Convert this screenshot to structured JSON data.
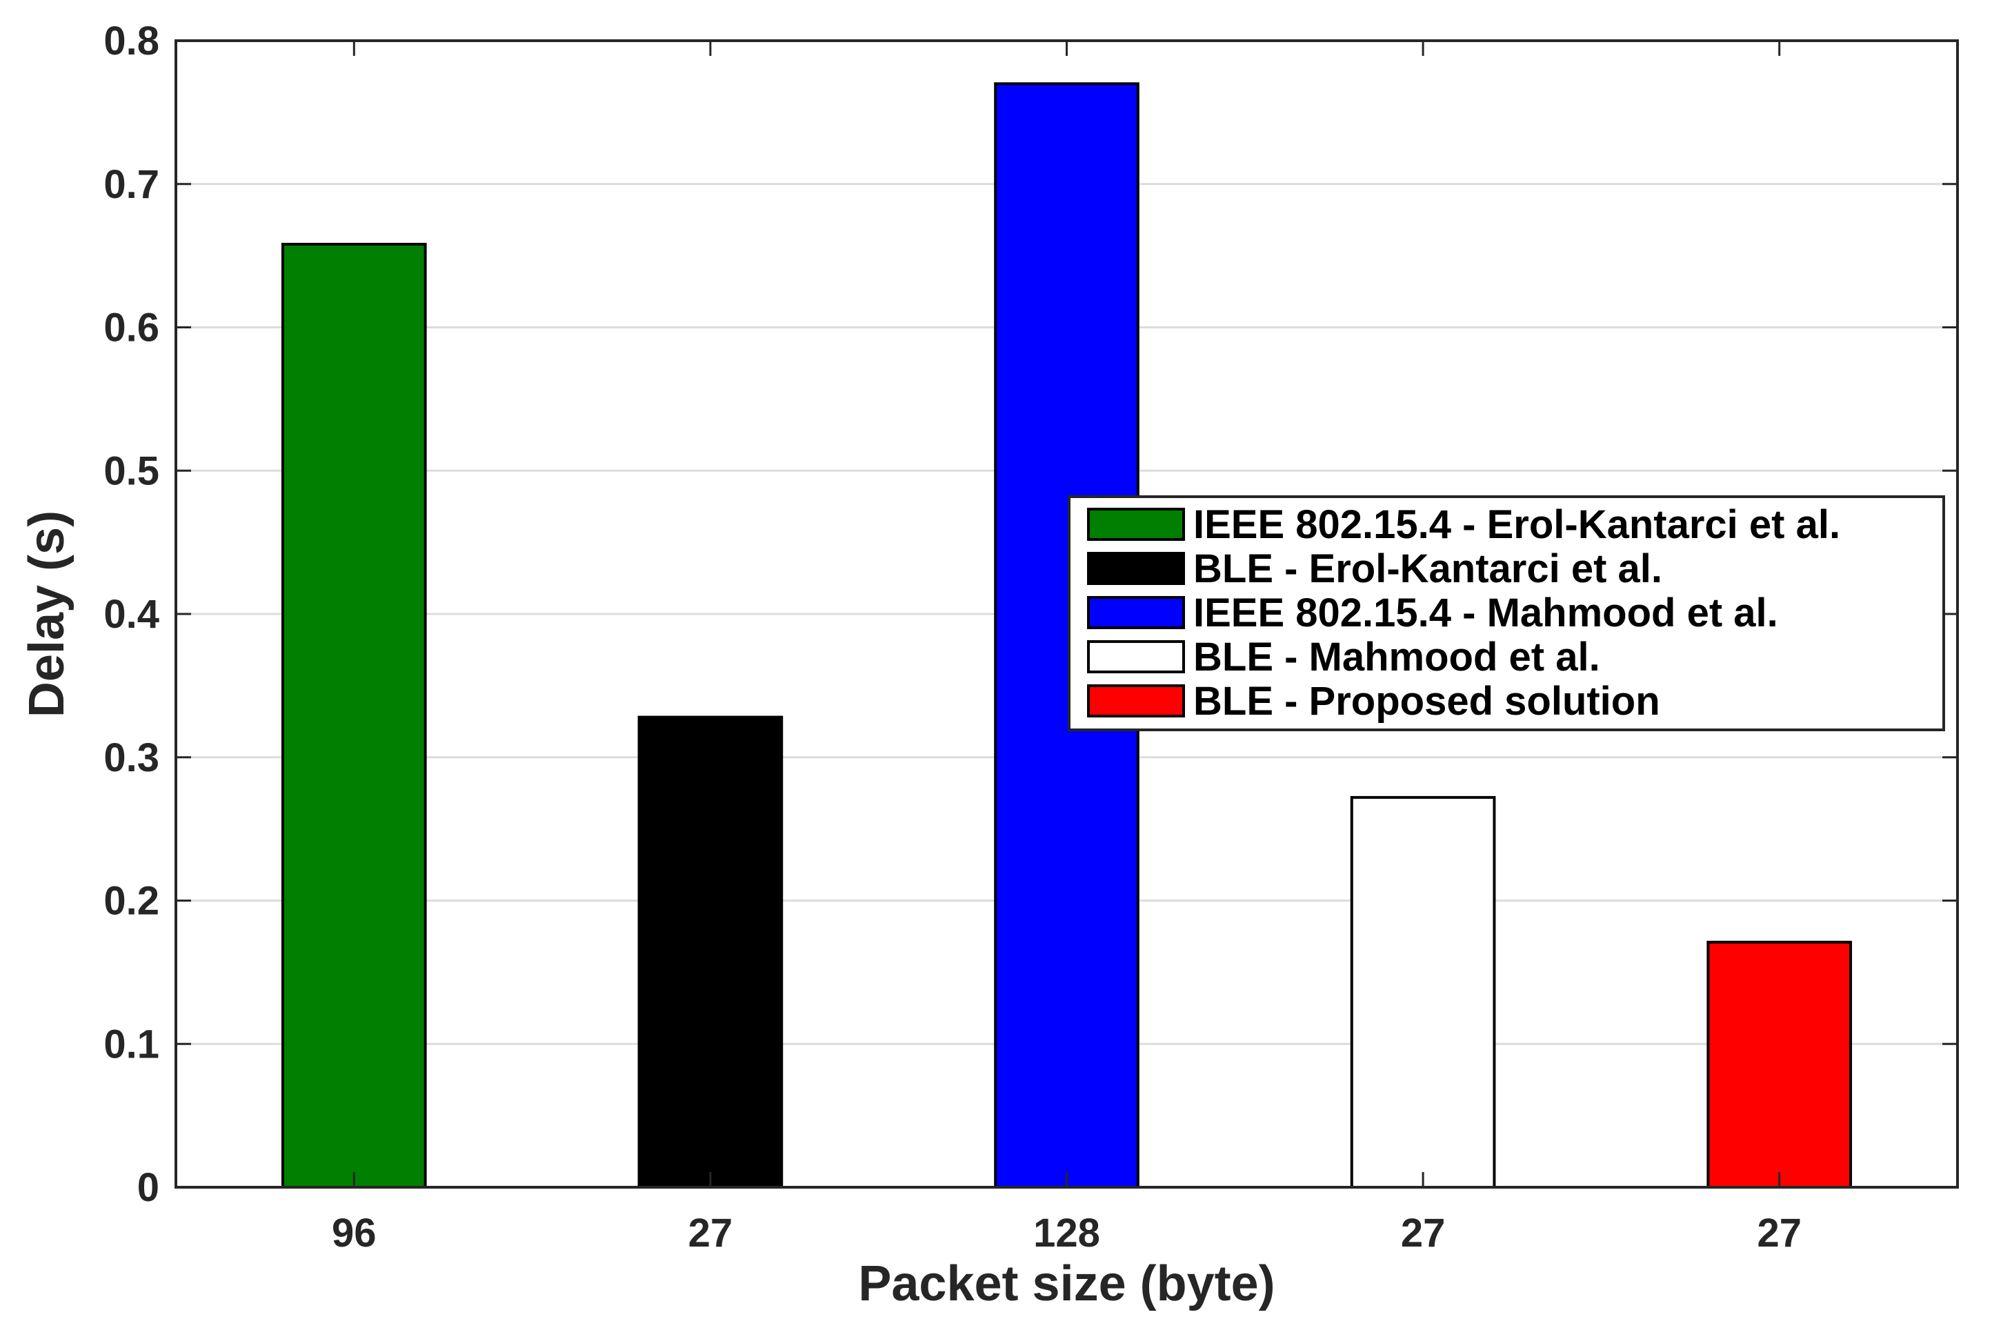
{
  "chart_data": {
    "type": "bar",
    "title": "",
    "xlabel": "Packet size (byte)",
    "ylabel": "Delay (s)",
    "categories": [
      "96",
      "27",
      "128",
      "27",
      "27"
    ],
    "values": [
      0.658,
      0.328,
      0.77,
      0.272,
      0.171
    ],
    "series_names": [
      "IEEE 802.15.4 - Erol-Kantarci et al.",
      "BLE - Erol-Kantarci et al.",
      "IEEE 802.15.4 - Mahmood et al.",
      "BLE - Mahmood et al.",
      "BLE - Proposed solution"
    ],
    "colors": [
      "#007f00",
      "#000000",
      "#0000ff",
      "#ffffff",
      "#ff0000"
    ],
    "ylim": [
      0,
      0.8
    ],
    "yticks": [
      0,
      0.1,
      0.2,
      0.3,
      0.4,
      0.5,
      0.6,
      0.7,
      0.8
    ],
    "ytick_labels": [
      "0",
      "0.1",
      "0.2",
      "0.3",
      "0.4",
      "0.5",
      "0.6",
      "0.7",
      "0.8"
    ],
    "grid": "horizontal",
    "legend_position": "right"
  }
}
